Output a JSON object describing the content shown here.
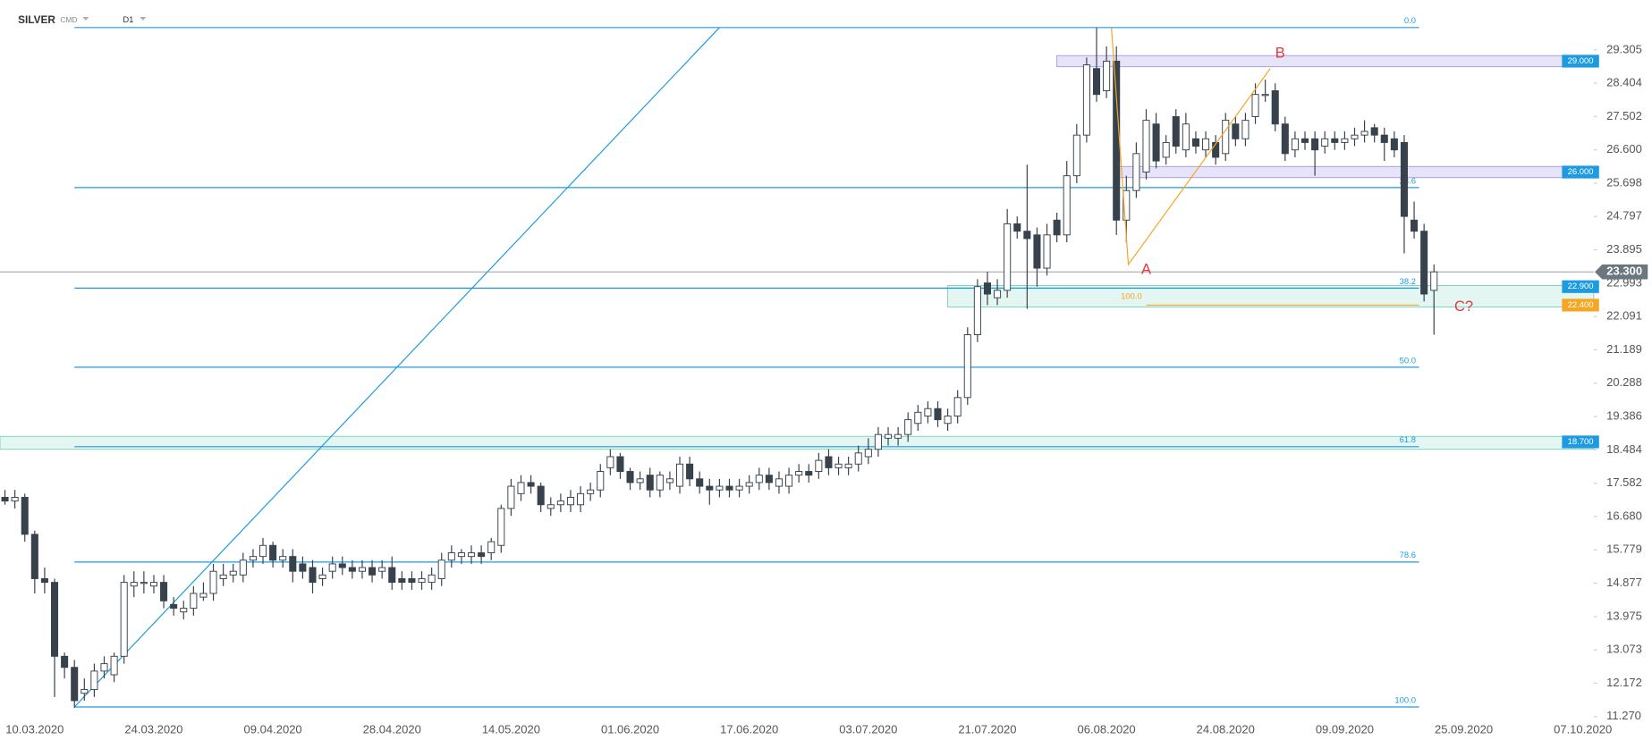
{
  "chart_data": {
    "type": "candlestick",
    "title": "SILVER",
    "source": "CMD",
    "timeframe": "D1",
    "colors": {
      "up": "#ffffff",
      "down": "#37424c",
      "outline": "#37424c",
      "fib": "#1e9be0",
      "orange": "#f5a623",
      "wave_label": "#e03a3a",
      "last": "#6b7780"
    },
    "xlim": [
      -0.5,
      160.1
    ],
    "xticks": [
      {
        "value": 3,
        "label": "10.03.2020"
      },
      {
        "value": 15,
        "label": "24.03.2020"
      },
      {
        "value": 27,
        "label": "09.04.2020"
      },
      {
        "value": 39,
        "label": "28.04.2020"
      },
      {
        "value": 51,
        "label": "14.05.2020"
      },
      {
        "value": 63,
        "label": "01.06.2020"
      },
      {
        "value": 75,
        "label": "17.06.2020"
      },
      {
        "value": 87,
        "label": "03.07.2020"
      },
      {
        "value": 99,
        "label": "21.07.2020"
      },
      {
        "value": 111,
        "label": "06.08.2020"
      },
      {
        "value": 123,
        "label": "24.08.2020"
      },
      {
        "value": 135,
        "label": "09.09.2020"
      },
      {
        "value": 147,
        "label": "25.09.2020"
      },
      {
        "value": 159,
        "label": "07.10.2020"
      }
    ],
    "ylim": [
      10.64,
      30.65
    ],
    "yticks": [
      {
        "value": 11.27,
        "label": "11.270"
      },
      12.172,
      13.073,
      13.975,
      14.877,
      15.779,
      {
        "value": 16.68,
        "label": "16.680"
      },
      17.582,
      18.484,
      19.386,
      20.288,
      21.189,
      22.091,
      22.993,
      23.895,
      24.797,
      25.698,
      {
        "value": 26.6,
        "label": "26.600"
      },
      27.502,
      28.404,
      29.305
    ],
    "open": [
      17.2,
      17.1,
      17.2,
      16.2,
      15.0,
      14.9,
      12.9,
      12.6,
      11.9,
      12.0,
      12.5,
      12.4,
      12.9,
      14.8,
      14.9,
      14.8,
      14.9,
      14.3,
      14.1,
      14.2,
      14.5,
      14.6,
      15.0,
      15.1,
      15.1,
      15.5,
      15.6,
      15.9,
      15.5,
      15.6,
      15.4,
      15.3,
      15.0,
      15.2,
      15.4,
      15.3,
      15.2,
      15.3,
      15.2,
      15.3,
      15.0,
      15.0,
      14.9,
      14.9,
      15.0,
      15.5,
      15.6,
      15.6,
      15.7,
      15.7,
      15.9,
      16.9,
      17.3,
      17.6,
      17.5,
      16.9,
      17.0,
      17.0,
      17.0,
      17.3,
      17.4,
      18.0,
      18.3,
      17.9,
      17.6,
      17.8,
      17.4,
      17.6,
      17.5,
      18.1,
      17.7,
      17.5,
      17.4,
      17.5,
      17.4,
      17.5,
      17.6,
      17.8,
      17.5,
      17.5,
      17.8,
      17.9,
      17.9,
      18.3,
      18.0,
      18.0,
      18.1,
      18.3,
      18.5,
      18.8,
      18.8,
      18.9,
      19.2,
      19.4,
      19.6,
      19.2,
      19.4,
      19.9,
      21.6,
      23.0,
      22.6,
      22.8,
      24.6,
      24.4,
      24.3,
      23.4,
      24.7,
      24.3,
      25.9,
      27.0,
      28.8,
      28.2,
      29.0,
      24.7,
      25.5,
      26.0,
      27.3,
      26.4,
      27.5,
      26.6,
      26.9,
      26.6,
      26.8,
      26.5,
      27.3,
      26.9,
      27.5,
      28.1,
      28.2,
      27.3,
      26.6,
      26.9,
      26.9,
      26.7,
      26.9,
      26.8,
      26.9,
      27.0,
      27.2,
      27.0,
      26.9,
      26.8,
      24.7,
      24.4,
      22.8
    ],
    "high": [
      17.4,
      17.4,
      17.3,
      16.3,
      15.3,
      15.0,
      13.0,
      12.8,
      12.3,
      12.7,
      12.9,
      13.0,
      15.1,
      15.2,
      15.2,
      15.1,
      15.1,
      14.5,
      14.4,
      14.8,
      14.9,
      15.4,
      15.4,
      15.4,
      15.7,
      15.8,
      16.1,
      16.0,
      15.8,
      15.8,
      15.6,
      15.5,
      15.3,
      15.6,
      15.6,
      15.5,
      15.5,
      15.5,
      15.5,
      15.6,
      15.2,
      15.2,
      15.2,
      15.3,
      15.7,
      15.9,
      15.8,
      15.9,
      15.9,
      16.1,
      17.0,
      17.7,
      17.8,
      17.8,
      17.6,
      17.2,
      17.3,
      17.4,
      17.5,
      17.6,
      18.1,
      18.5,
      18.4,
      18.0,
      17.9,
      18.0,
      17.9,
      17.9,
      18.3,
      18.3,
      17.9,
      17.7,
      17.7,
      17.7,
      17.7,
      17.8,
      18.0,
      18.0,
      17.9,
      18.0,
      18.1,
      18.1,
      18.4,
      18.5,
      18.3,
      18.3,
      18.6,
      18.8,
      19.1,
      19.1,
      19.1,
      19.5,
      19.7,
      19.8,
      19.8,
      19.6,
      20.1,
      21.8,
      23.1,
      23.3,
      23.1,
      25.0,
      24.8,
      26.2,
      24.5,
      24.6,
      24.9,
      26.3,
      27.3,
      29.1,
      29.9,
      29.4,
      29.4,
      25.9,
      26.8,
      27.7,
      27.6,
      27.0,
      27.7,
      27.6,
      27.1,
      27.1,
      27.0,
      27.6,
      27.5,
      27.6,
      28.4,
      28.5,
      28.4,
      27.5,
      27.1,
      27.1,
      27.1,
      27.1,
      27.1,
      27.1,
      27.2,
      27.4,
      27.3,
      27.2,
      27.1,
      27.0,
      25.2,
      24.6,
      23.5
    ],
    "low": [
      17.0,
      16.9,
      16.0,
      14.6,
      14.6,
      11.8,
      12.3,
      11.5,
      11.7,
      11.8,
      12.3,
      12.2,
      12.7,
      14.5,
      14.6,
      14.6,
      14.2,
      14.0,
      13.9,
      14.0,
      14.4,
      14.4,
      14.8,
      14.9,
      14.9,
      15.3,
      15.4,
      15.3,
      15.3,
      14.9,
      15.0,
      14.6,
      14.8,
      15.0,
      15.1,
      15.0,
      15.0,
      14.9,
      15.0,
      14.7,
      14.7,
      14.7,
      14.7,
      14.7,
      14.8,
      15.3,
      15.4,
      15.4,
      15.4,
      15.5,
      15.7,
      16.7,
      17.1,
      17.3,
      16.8,
      16.7,
      16.8,
      16.8,
      16.8,
      17.1,
      17.2,
      17.8,
      17.7,
      17.4,
      17.4,
      17.2,
      17.2,
      17.4,
      17.3,
      17.5,
      17.3,
      17.0,
      17.2,
      17.2,
      17.2,
      17.3,
      17.4,
      17.4,
      17.3,
      17.3,
      17.6,
      17.6,
      17.7,
      17.8,
      17.8,
      17.8,
      17.9,
      18.1,
      18.3,
      18.6,
      18.6,
      18.7,
      19.0,
      19.2,
      19.1,
      19.0,
      19.2,
      19.7,
      21.4,
      22.4,
      22.4,
      22.6,
      24.2,
      22.3,
      22.9,
      23.2,
      24.1,
      24.1,
      25.7,
      26.8,
      27.9,
      28.0,
      24.3,
      24.1,
      25.3,
      25.8,
      26.1,
      26.2,
      26.5,
      26.4,
      26.5,
      26.4,
      26.2,
      26.3,
      26.7,
      26.7,
      27.3,
      27.9,
      27.1,
      26.3,
      26.4,
      26.6,
      25.9,
      26.5,
      26.6,
      26.6,
      26.7,
      26.8,
      26.8,
      26.3,
      26.4,
      23.8,
      24.2,
      22.5,
      21.6
    ],
    "close": [
      17.1,
      17.2,
      16.2,
      15.0,
      14.9,
      12.9,
      12.6,
      11.7,
      12.0,
      12.5,
      12.7,
      12.9,
      14.9,
      14.9,
      14.9,
      14.9,
      14.4,
      14.2,
      14.2,
      14.6,
      14.6,
      15.2,
      15.1,
      15.2,
      15.5,
      15.6,
      15.9,
      15.5,
      15.6,
      15.2,
      15.2,
      14.9,
      15.1,
      15.4,
      15.3,
      15.2,
      15.3,
      15.1,
      15.3,
      14.9,
      14.9,
      14.9,
      15.0,
      15.1,
      15.5,
      15.7,
      15.7,
      15.7,
      15.6,
      16.0,
      16.9,
      17.5,
      17.6,
      17.5,
      17.0,
      17.0,
      17.1,
      17.2,
      17.3,
      17.4,
      17.9,
      18.3,
      17.9,
      17.6,
      17.7,
      17.4,
      17.8,
      17.7,
      18.1,
      17.7,
      17.5,
      17.4,
      17.5,
      17.4,
      17.5,
      17.6,
      17.8,
      17.6,
      17.7,
      17.8,
      17.9,
      17.8,
      18.2,
      18.0,
      18.1,
      18.1,
      18.4,
      18.5,
      18.9,
      18.9,
      18.9,
      19.3,
      19.5,
      19.6,
      19.3,
      19.4,
      19.9,
      21.6,
      22.9,
      22.7,
      22.8,
      24.6,
      24.4,
      24.2,
      23.4,
      24.3,
      24.3,
      25.9,
      27.0,
      28.9,
      28.1,
      29.0,
      24.7,
      25.5,
      26.5,
      27.4,
      26.3,
      26.8,
      26.7,
      27.3,
      26.7,
      26.9,
      26.4,
      27.4,
      26.9,
      27.4,
      28.1,
      28.1,
      27.3,
      26.5,
      26.9,
      26.8,
      26.6,
      26.9,
      26.8,
      26.9,
      27.0,
      27.1,
      27.0,
      26.8,
      26.6,
      24.8,
      24.4,
      22.7,
      23.3
    ],
    "fibonacci": {
      "x": [
        7,
        142.5
      ],
      "levels": [
        {
          "value": 29.91,
          "label": "0.0"
        },
        {
          "value": 25.58,
          "label": "23.6"
        },
        {
          "value": 22.86,
          "label": "38.2"
        },
        {
          "value": 20.72,
          "label": "50.0"
        },
        {
          "value": 18.57,
          "label": "61.8"
        },
        {
          "value": 15.45,
          "label": "78.6"
        },
        {
          "value": 11.53,
          "label": "100.0"
        }
      ]
    },
    "trend_line": {
      "x": [
        7,
        72
      ],
      "y": [
        11.53,
        29.91
      ]
    },
    "zones": [
      {
        "ylim": [
          28.85,
          29.15
        ],
        "x0": 106,
        "tag": {
          "value": 29,
          "label": "29.000"
        },
        "fill": "rgba(185,175,235,0.35)",
        "stroke": "#a99be0"
      },
      {
        "ylim": [
          25.85,
          26.15
        ],
        "x0": 112,
        "tag": {
          "value": 26,
          "label": "26.000"
        },
        "fill": "rgba(185,175,235,0.35)",
        "stroke": "#a99be0"
      },
      {
        "ylim": [
          22.35,
          22.93
        ],
        "x0": 95,
        "tag": {
          "value": 22.9,
          "label": "22.900"
        },
        "fill": "rgba(130,215,195,0.22)",
        "stroke": "#7fd0bb"
      },
      {
        "ylim": [
          18.5,
          18.85
        ],
        "x0": -0.5,
        "tag": {
          "value": 18.7,
          "label": "18.700"
        },
        "fill": "rgba(130,215,195,0.22)",
        "stroke": "#7fd0bb"
      }
    ],
    "orange_level": {
      "x": [
        115,
        142.5
      ],
      "ratio": "100.0",
      "tag": {
        "value": 22.4,
        "label": "22.400"
      }
    },
    "last_price": {
      "value": 23.3,
      "label": "23.300"
    },
    "wave_path": {
      "x": [
        111.5,
        113.2,
        127.5
      ],
      "y": [
        29.9,
        23.5,
        28.8
      ]
    },
    "wave_labels": [
      {
        "label": "A",
        "x": 115,
        "y": 23.35
      },
      {
        "label": "B",
        "x": 128.5,
        "y": 29.2
      },
      {
        "label": "C?",
        "x": 147,
        "y": 22.35
      }
    ]
  }
}
